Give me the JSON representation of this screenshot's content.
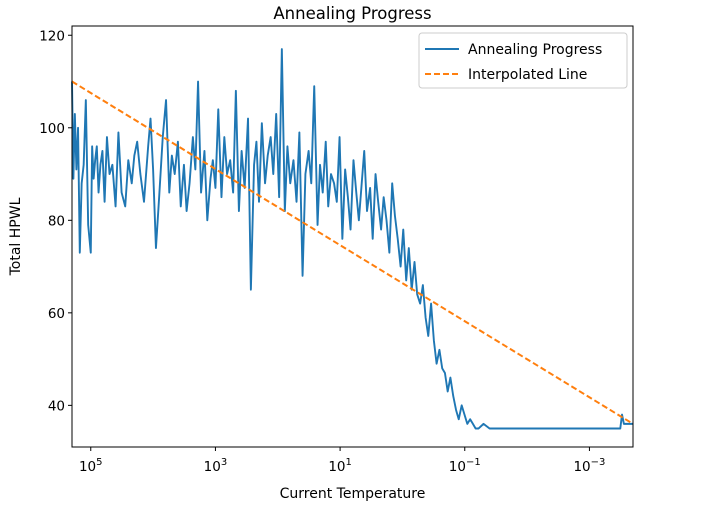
{
  "chart_data": {
    "type": "line",
    "title": "Annealing Progress",
    "xlabel": "Current Temperature",
    "ylabel": "Total HPWL",
    "xscale": "log",
    "x_reversed": true,
    "xlim": [
      200000,
      0.0002
    ],
    "ylim": [
      31,
      122
    ],
    "grid": false,
    "legend_position": "top-right",
    "x_ticks": [
      {
        "value": 100000,
        "base": "10",
        "exp": "5"
      },
      {
        "value": 1000,
        "base": "10",
        "exp": "3"
      },
      {
        "value": 10,
        "base": "10",
        "exp": "1"
      },
      {
        "value": 0.1,
        "base": "10",
        "exp": "−1"
      },
      {
        "value": 0.001,
        "base": "10",
        "exp": "−3"
      }
    ],
    "y_ticks": [
      {
        "value": 40,
        "label": "40"
      },
      {
        "value": 60,
        "label": "60"
      },
      {
        "value": 80,
        "label": "80"
      },
      {
        "value": 100,
        "label": "100"
      },
      {
        "value": 120,
        "label": "120"
      }
    ],
    "series": [
      {
        "name": "Annealing Progress",
        "color": "#1f77b4",
        "style": "solid",
        "points": [
          [
            200000,
            110
          ],
          [
            190000,
            89
          ],
          [
            180000,
            103
          ],
          [
            170000,
            91
          ],
          [
            160000,
            100
          ],
          [
            150000,
            73
          ],
          [
            140000,
            88
          ],
          [
            130000,
            92
          ],
          [
            120000,
            106
          ],
          [
            110000,
            79
          ],
          [
            100000,
            73
          ],
          [
            95000,
            96
          ],
          [
            90000,
            89
          ],
          [
            85000,
            93
          ],
          [
            80000,
            96
          ],
          [
            75000,
            86
          ],
          [
            70000,
            92
          ],
          [
            65000,
            95
          ],
          [
            60000,
            84
          ],
          [
            55000,
            98
          ],
          [
            50000,
            90
          ],
          [
            45000,
            92
          ],
          [
            40000,
            83
          ],
          [
            36000,
            99
          ],
          [
            32000,
            86
          ],
          [
            28000,
            83
          ],
          [
            25000,
            93
          ],
          [
            22000,
            88
          ],
          [
            20000,
            94
          ],
          [
            18000,
            97
          ],
          [
            16000,
            90
          ],
          [
            14000,
            84
          ],
          [
            12000,
            96
          ],
          [
            11000,
            102
          ],
          [
            10000,
            91
          ],
          [
            9000,
            74
          ],
          [
            8000,
            85
          ],
          [
            7000,
            98
          ],
          [
            6200,
            106
          ],
          [
            5500,
            86
          ],
          [
            5000,
            94
          ],
          [
            4500,
            90
          ],
          [
            4000,
            97
          ],
          [
            3600,
            83
          ],
          [
            3200,
            92
          ],
          [
            2900,
            82
          ],
          [
            2600,
            88
          ],
          [
            2300,
            98
          ],
          [
            2100,
            91
          ],
          [
            1900,
            110
          ],
          [
            1700,
            86
          ],
          [
            1500,
            95
          ],
          [
            1350,
            80
          ],
          [
            1200,
            89
          ],
          [
            1100,
            93
          ],
          [
            1000,
            87
          ],
          [
            900,
            104
          ],
          [
            800,
            85
          ],
          [
            720,
            98
          ],
          [
            650,
            90
          ],
          [
            580,
            93
          ],
          [
            520,
            86
          ],
          [
            470,
            108
          ],
          [
            420,
            82
          ],
          [
            380,
            95
          ],
          [
            340,
            87
          ],
          [
            300,
            102
          ],
          [
            270,
            65
          ],
          [
            240,
            92
          ],
          [
            220,
            97
          ],
          [
            200,
            84
          ],
          [
            180,
            101
          ],
          [
            160,
            88
          ],
          [
            145,
            94
          ],
          [
            130,
            98
          ],
          [
            118,
            90
          ],
          [
            106,
            103
          ],
          [
            95,
            85
          ],
          [
            86,
            117
          ],
          [
            77,
            82
          ],
          [
            70,
            96
          ],
          [
            63,
            88
          ],
          [
            56,
            93
          ],
          [
            50,
            84
          ],
          [
            45,
            99
          ],
          [
            40,
            68
          ],
          [
            36,
            90
          ],
          [
            32,
            95
          ],
          [
            29,
            88
          ],
          [
            26,
            109
          ],
          [
            23,
            79
          ],
          [
            21,
            92
          ],
          [
            19,
            86
          ],
          [
            17,
            97
          ],
          [
            15.5,
            83
          ],
          [
            14,
            90
          ],
          [
            12.5,
            88
          ],
          [
            11.3,
            84
          ],
          [
            10.2,
            98
          ],
          [
            9.2,
            76
          ],
          [
            8.3,
            91
          ],
          [
            7.5,
            85
          ],
          [
            6.8,
            78
          ],
          [
            6.1,
            93
          ],
          [
            5.5,
            86
          ],
          [
            5.0,
            80
          ],
          [
            4.5,
            88
          ],
          [
            4.1,
            95
          ],
          [
            3.7,
            82
          ],
          [
            3.3,
            87
          ],
          [
            3.0,
            76
          ],
          [
            2.7,
            90
          ],
          [
            2.45,
            84
          ],
          [
            2.2,
            78
          ],
          [
            2.0,
            85
          ],
          [
            1.8,
            80
          ],
          [
            1.62,
            73
          ],
          [
            1.46,
            88
          ],
          [
            1.32,
            81
          ],
          [
            1.19,
            76
          ],
          [
            1.07,
            70
          ],
          [
            0.97,
            78
          ],
          [
            0.87,
            67
          ],
          [
            0.79,
            74
          ],
          [
            0.71,
            65
          ],
          [
            0.64,
            71
          ],
          [
            0.58,
            64
          ],
          [
            0.52,
            62
          ],
          [
            0.47,
            66
          ],
          [
            0.425,
            59
          ],
          [
            0.385,
            55
          ],
          [
            0.347,
            62
          ],
          [
            0.313,
            54
          ],
          [
            0.283,
            49
          ],
          [
            0.255,
            52
          ],
          [
            0.23,
            48
          ],
          [
            0.208,
            47
          ],
          [
            0.188,
            43
          ],
          [
            0.17,
            46
          ],
          [
            0.153,
            42
          ],
          [
            0.138,
            39
          ],
          [
            0.125,
            37
          ],
          [
            0.112,
            40
          ],
          [
            0.101,
            38
          ],
          [
            0.091,
            36
          ],
          [
            0.082,
            37
          ],
          [
            0.074,
            36
          ],
          [
            0.067,
            35
          ],
          [
            0.06,
            35
          ],
          [
            0.05,
            36
          ],
          [
            0.04,
            35
          ],
          [
            0.03,
            35
          ],
          [
            0.01,
            35
          ],
          [
            0.003,
            35
          ],
          [
            0.001,
            35
          ],
          [
            0.0005,
            35
          ],
          [
            0.00035,
            35
          ],
          [
            0.00032,
            35
          ],
          [
            0.0003,
            38
          ],
          [
            0.00028,
            36
          ],
          [
            0.00025,
            36
          ],
          [
            0.0002,
            36
          ]
        ]
      },
      {
        "name": "Interpolated Line",
        "color": "#ff7f0e",
        "style": "dashed",
        "points": [
          [
            200000,
            110
          ],
          [
            0.0002,
            36
          ]
        ]
      }
    ]
  }
}
